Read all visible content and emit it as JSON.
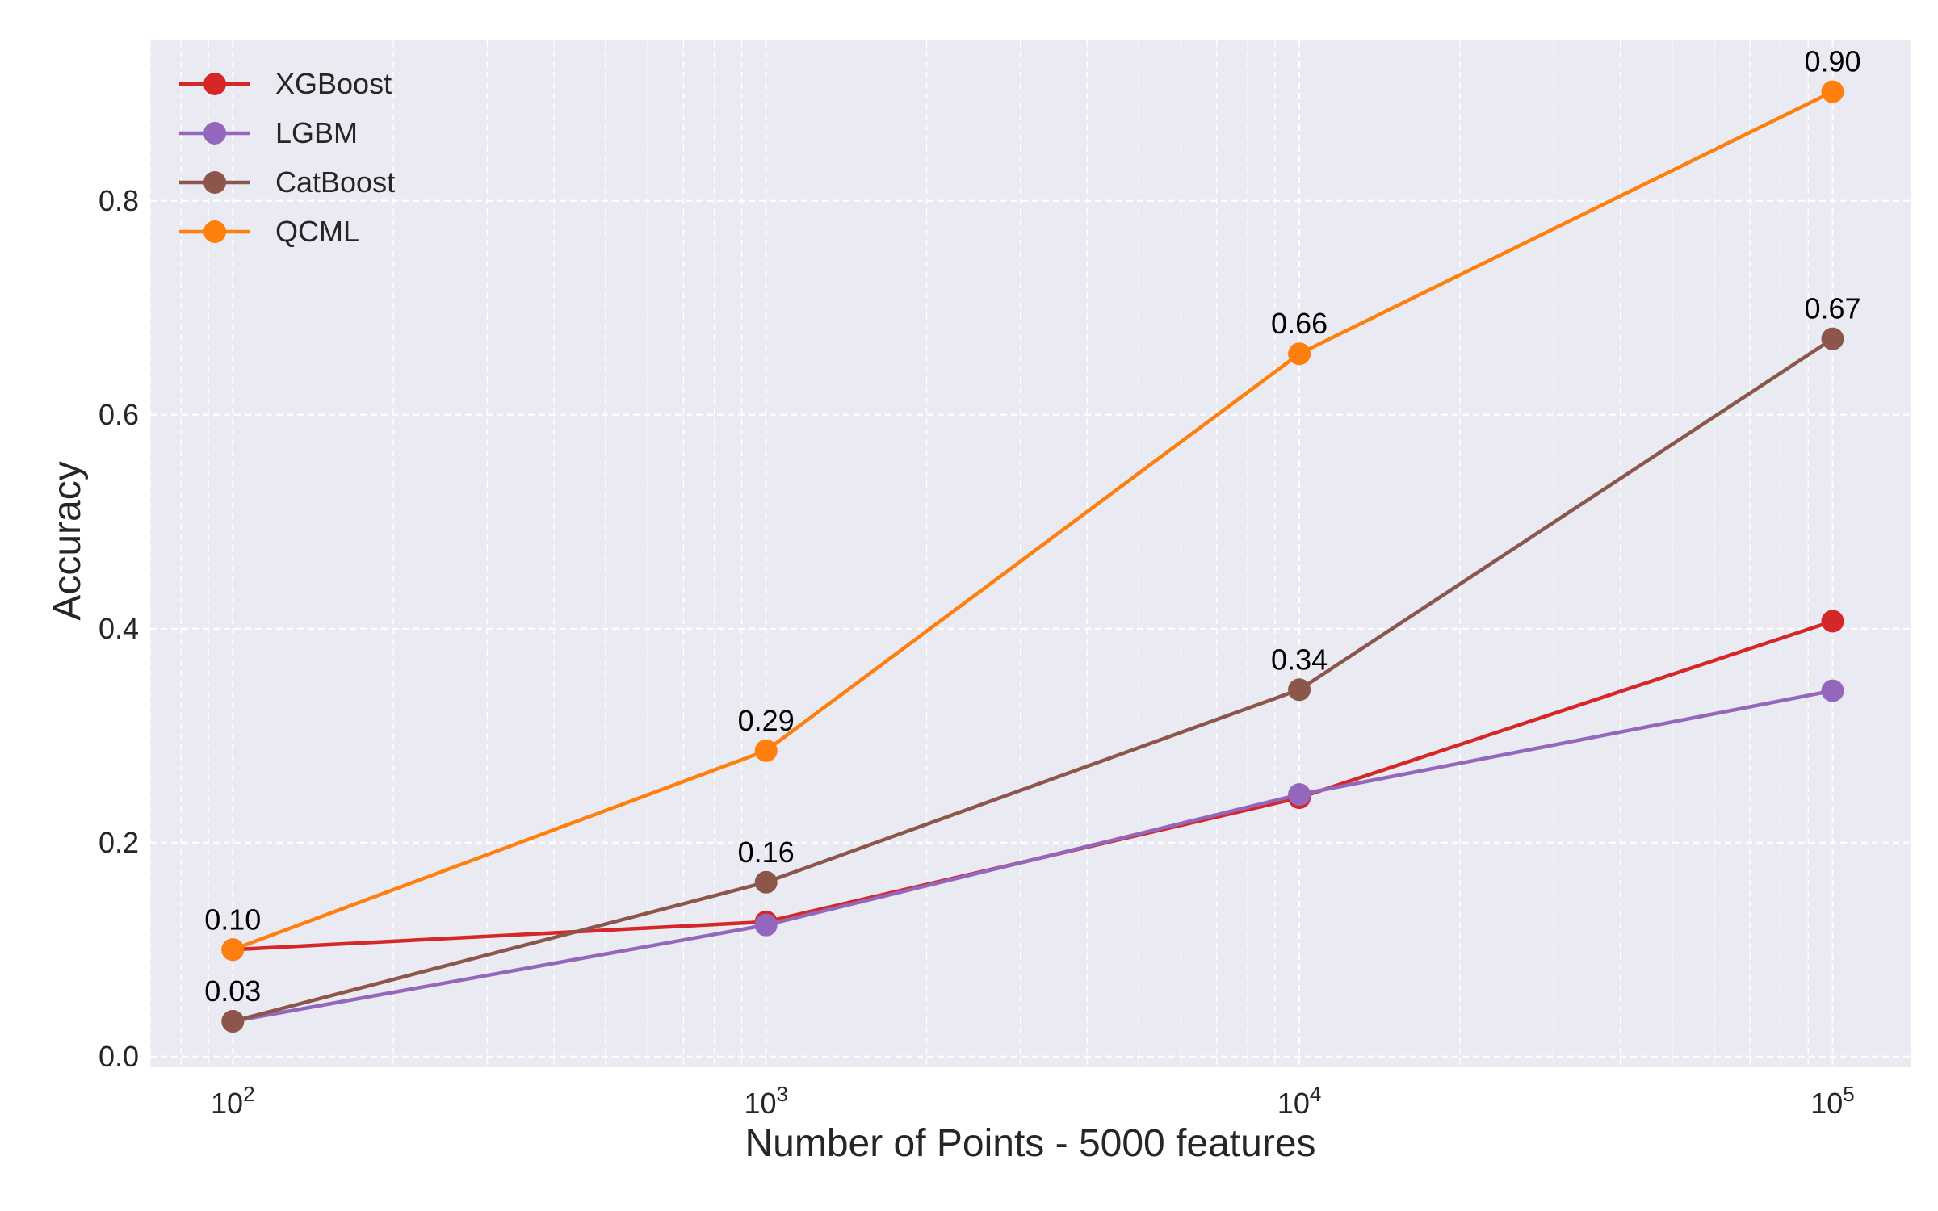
{
  "chart_data": {
    "type": "line",
    "xlabel": "Number of Points - 5000 features",
    "ylabel": "Accuracy",
    "x_scale": "log",
    "x": [
      100,
      1000,
      10000,
      100000
    ],
    "xtick_labels": [
      {
        "base": "10",
        "exp": "2"
      },
      {
        "base": "10",
        "exp": "3"
      },
      {
        "base": "10",
        "exp": "4"
      },
      {
        "base": "10",
        "exp": "5"
      }
    ],
    "xlim": [
      70,
      140000
    ],
    "ylim": [
      -0.01,
      0.95
    ],
    "yticks": [
      0.0,
      0.2,
      0.4,
      0.6,
      0.8
    ],
    "ytick_labels": [
      "0.0",
      "0.2",
      "0.4",
      "0.6",
      "0.8"
    ],
    "grid": true,
    "legend_position": "top-left",
    "series": [
      {
        "name": "XGBoost",
        "color": "#d62728",
        "values": [
          0.1,
          0.126,
          0.242,
          0.407
        ]
      },
      {
        "name": "LGBM",
        "color": "#9467bd",
        "values": [
          0.033,
          0.123,
          0.245,
          0.342
        ]
      },
      {
        "name": "CatBoost",
        "color": "#8c564b",
        "values": [
          0.033,
          0.163,
          0.343,
          0.671
        ]
      },
      {
        "name": "QCML",
        "color": "#ff7f0e",
        "values": [
          0.1,
          0.286,
          0.657,
          0.902
        ]
      }
    ],
    "annotations": [
      {
        "text": "0.10",
        "x": 100,
        "y": 0.1
      },
      {
        "text": "0.03",
        "x": 100,
        "y": 0.033
      },
      {
        "text": "0.29",
        "x": 1000,
        "y": 0.286
      },
      {
        "text": "0.16",
        "x": 1000,
        "y": 0.163
      },
      {
        "text": "0.66",
        "x": 10000,
        "y": 0.657
      },
      {
        "text": "0.34",
        "x": 10000,
        "y": 0.343
      },
      {
        "text": "0.90",
        "x": 100000,
        "y": 0.902
      },
      {
        "text": "0.67",
        "x": 100000,
        "y": 0.671
      }
    ],
    "plot_background": "#eaeaf2"
  }
}
